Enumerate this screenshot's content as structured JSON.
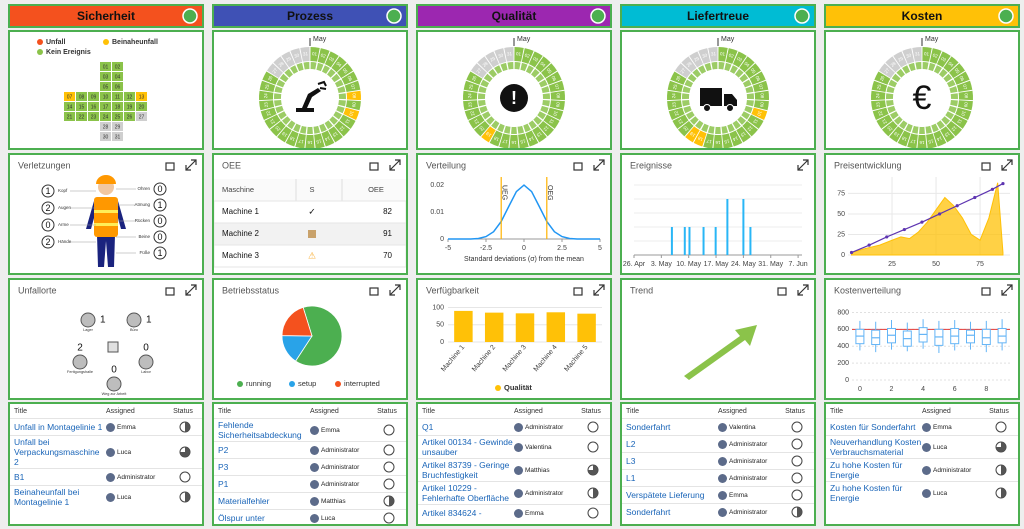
{
  "calendar": {
    "month": "May",
    "days": [
      "01",
      "02",
      "03",
      "04",
      "05",
      "06",
      "07",
      "08",
      "09",
      "10",
      "11",
      "12",
      "13",
      "14",
      "15",
      "16",
      "17",
      "18",
      "19",
      "20",
      "21",
      "22",
      "23",
      "24",
      "25",
      "26",
      "27",
      "28",
      "29",
      "30",
      "31"
    ]
  },
  "legend": [
    {
      "label": "Unfall",
      "color": "#f4511e"
    },
    {
      "label": "Beinaheunfall",
      "color": "#ffc107"
    },
    {
      "label": "Kein Ereignis",
      "color": "#8bc34a"
    }
  ],
  "columns": [
    {
      "title": "Sicherheit",
      "color": "#f4511e",
      "cross": [
        2,
        2,
        2,
        2,
        2,
        2,
        1,
        2,
        2,
        2,
        2,
        2,
        1,
        2,
        2,
        2,
        2,
        2,
        2,
        2,
        2,
        2,
        2,
        2,
        2,
        2,
        null,
        null,
        null,
        null,
        null
      ]
    },
    {
      "title": "Prozess",
      "color": "#3f51b5",
      "ring": [
        2,
        2,
        2,
        2,
        2,
        2,
        2,
        1,
        2,
        1,
        2,
        2,
        2,
        2,
        2,
        2,
        2,
        2,
        2,
        2,
        2,
        2,
        2,
        2,
        2,
        2,
        null,
        null,
        null,
        null,
        null
      ]
    },
    {
      "title": "Qualität",
      "color": "#9c27b0",
      "icon": "!",
      "ring": [
        2,
        2,
        2,
        2,
        2,
        2,
        2,
        2,
        2,
        2,
        2,
        2,
        2,
        2,
        2,
        2,
        2,
        2,
        1,
        2,
        2,
        2,
        2,
        2,
        2,
        2,
        null,
        null,
        null,
        null,
        null
      ]
    },
    {
      "title": "Liefertreue",
      "color": "#00bcd4",
      "ring": [
        2,
        2,
        2,
        2,
        2,
        2,
        2,
        2,
        2,
        1,
        2,
        2,
        2,
        2,
        2,
        2,
        2,
        1,
        1,
        2,
        2,
        2,
        2,
        2,
        2,
        2,
        null,
        null,
        null,
        null,
        null
      ]
    },
    {
      "title": "Kosten",
      "color": "#ffc107",
      "icon": "€",
      "ring": [
        2,
        2,
        2,
        2,
        2,
        2,
        2,
        2,
        2,
        2,
        2,
        2,
        2,
        2,
        2,
        2,
        2,
        2,
        2,
        2,
        2,
        2,
        2,
        2,
        2,
        2,
        null,
        null,
        null,
        null,
        null
      ]
    }
  ],
  "injuries": {
    "title": "Verletzungen",
    "left": [
      {
        "label": "Kopf",
        "value": 1
      },
      {
        "label": "Augen",
        "value": 2
      },
      {
        "label": "Arme",
        "value": 0
      },
      {
        "label": "Hände",
        "value": 2
      }
    ],
    "right": [
      {
        "label": "Ohren",
        "value": 0
      },
      {
        "label": "Atmung",
        "value": 1
      },
      {
        "label": "Rücken",
        "value": 0
      },
      {
        "label": "Beine",
        "value": 0
      },
      {
        "label": "Füße",
        "value": 1
      }
    ]
  },
  "oee": {
    "title": "OEE",
    "columns": [
      "Maschine",
      "S",
      "OEE"
    ],
    "rows": [
      [
        "Machine 1",
        "✓",
        82
      ],
      [
        "Machine 2",
        null,
        91
      ],
      [
        "Machine 3",
        "⚠",
        70
      ]
    ]
  },
  "distribution": {
    "type": "line",
    "title": "Verteilung",
    "x_label": "Standard deviations (σ) from the mean",
    "color": "#2196f3",
    "x": [
      -5,
      -4.5,
      -4,
      -3.5,
      -3,
      -2.5,
      -2,
      -1.5,
      -1,
      -0.5,
      0,
      0.5,
      1,
      1.5,
      2,
      2.5,
      3,
      3.5,
      4,
      4.5,
      5
    ],
    "values": [
      0,
      0,
      0,
      0,
      0.0002,
      0.0009,
      0.0027,
      0.0065,
      0.0121,
      0.0176,
      0.02,
      0.0176,
      0.0121,
      0.0065,
      0.0027,
      0.0009,
      0.0002,
      0,
      0,
      0,
      0
    ],
    "xlim": [
      -5,
      5
    ],
    "ylim": [
      0,
      0.023
    ],
    "xticks": [
      -5,
      -2.5,
      0,
      2.5,
      5
    ],
    "yticks": [
      0,
      0.01,
      0.02
    ],
    "limits": [
      {
        "label": "UEG",
        "value": -1.5,
        "color": "#ffb300"
      },
      {
        "label": "OEG",
        "value": 1.5,
        "color": "#ffb300"
      }
    ]
  },
  "events": {
    "type": "bar",
    "title": "Ereignisse",
    "color": "#29b6f6",
    "x": [
      9.7,
      13,
      14.2,
      17.8,
      20.9,
      23.9,
      28,
      29.8
    ],
    "values": [
      1,
      1,
      1,
      1,
      1,
      2,
      2,
      1
    ],
    "xlim": [
      0,
      43
    ],
    "ylim": [
      0,
      2.5
    ],
    "xticks": [
      {
        "value": 0,
        "label": "26. Apr"
      },
      {
        "value": 7,
        "label": "3. May"
      },
      {
        "value": 14,
        "label": "10. May"
      },
      {
        "value": 21,
        "label": "17. May"
      },
      {
        "value": 28,
        "label": "24. May"
      },
      {
        "value": 35,
        "label": "31. May"
      },
      {
        "value": 42,
        "label": "7. Jun"
      }
    ]
  },
  "price": {
    "type": "line",
    "title": "Preisentwicklung",
    "xlim": [
      0,
      92
    ],
    "ylim": [
      0,
      95
    ],
    "xticks": [
      25,
      50,
      75
    ],
    "yticks": [
      0,
      25,
      50,
      75
    ],
    "series": [
      {
        "color": "#ffc107",
        "x": [
          2,
          10,
          18,
          25,
          30,
          35,
          40,
          45,
          50,
          55,
          60,
          65,
          70,
          75,
          80,
          85,
          88
        ],
        "values": [
          3,
          8,
          12,
          18,
          22,
          20,
          28,
          40,
          55,
          70,
          60,
          45,
          25,
          18,
          45,
          88,
          3
        ]
      },
      {
        "color": "#5e35b1",
        "x": [
          2,
          12,
          22,
          32,
          42,
          52,
          62,
          72,
          82,
          88
        ],
        "values": [
          3,
          12,
          22,
          31,
          40,
          50,
          60,
          70,
          80,
          87
        ]
      }
    ]
  },
  "locations": {
    "title": "Unfallorte",
    "items": [
      {
        "label": "Lager",
        "value": 1
      },
      {
        "label": "Büro",
        "value": 1
      },
      {
        "label": "Fertigungshalle",
        "value": 2
      },
      {
        "label": "Labor",
        "value": 0
      },
      {
        "label": "Weg zur Arbeit",
        "value": 0
      }
    ]
  },
  "status": {
    "type": "pie",
    "title": "Betriebsstatus",
    "categories": [
      "running",
      "setup",
      "interrupted"
    ],
    "values": [
      64,
      16,
      20
    ],
    "colors": [
      "#4caf50",
      "#29a3e8",
      "#f4511e"
    ]
  },
  "availability": {
    "type": "bar",
    "title": "Verfügbarkeit",
    "categories": [
      "Machine 1",
      "Machine 2",
      "Machine 3",
      "Machine 4",
      "Machine 5"
    ],
    "ylim": [
      0,
      110
    ],
    "yticks": [
      0,
      50,
      100
    ],
    "series": [
      {
        "name": "Qualität",
        "color": "#ffc107",
        "values": [
          90,
          85,
          83,
          86,
          82
        ]
      }
    ]
  },
  "trend": {
    "title": "Trend"
  },
  "costs": {
    "type": "box",
    "title": "Kostenverteilung",
    "color": "#64b5f6",
    "target": 600,
    "target_color": "#e53935",
    "xlim": [
      -0.5,
      9.5
    ],
    "ylim": [
      0,
      900
    ],
    "xticks": [
      0,
      2,
      4,
      6,
      8
    ],
    "yticks": [
      0,
      200,
      400,
      600,
      800
    ],
    "boxes": [
      [
        350,
        430,
        520,
        600,
        700
      ],
      [
        330,
        420,
        500,
        590,
        690
      ],
      [
        360,
        440,
        530,
        610,
        710
      ],
      [
        340,
        400,
        490,
        580,
        680
      ],
      [
        370,
        450,
        540,
        620,
        720
      ],
      [
        320,
        410,
        510,
        600,
        700
      ],
      [
        350,
        430,
        520,
        610,
        710
      ],
      [
        360,
        440,
        530,
        590,
        690
      ],
      [
        330,
        420,
        500,
        600,
        700
      ],
      [
        350,
        440,
        520,
        610,
        720
      ]
    ]
  },
  "lists": {
    "headers": [
      "Title",
      "Assigned",
      "Status"
    ],
    "columns": [
      [
        {
          "title": "Unfall in Montagelinie 1",
          "assigned": "Emma",
          "status": 0.5
        },
        {
          "title": "Unfall bei Verpackungsmaschine 2",
          "assigned": "Luca",
          "status": 0.75
        },
        {
          "title": "B1",
          "assigned": "Administrator",
          "status": 0
        },
        {
          "title": "Beinaheunfall bei Montagelinie 1",
          "assigned": "Luca",
          "status": 0.5
        }
      ],
      [
        {
          "title": "Fehlende Sicherheitsabdeckung",
          "assigned": "Emma",
          "status": 0
        },
        {
          "title": "P2",
          "assigned": "Administrator",
          "status": 0
        },
        {
          "title": "P3",
          "assigned": "Administrator",
          "status": 0
        },
        {
          "title": "P1",
          "assigned": "Administrator",
          "status": 0
        },
        {
          "title": "Materialfehler",
          "assigned": "Matthias",
          "status": 0.5
        },
        {
          "title": "Ölspur unter",
          "assigned": "Luca",
          "status": 0
        }
      ],
      [
        {
          "title": "Q1",
          "assigned": "Administrator",
          "status": 0
        },
        {
          "title": "Artikel 00134 - Gewinde unsauber",
          "assigned": "Valentina",
          "status": 0
        },
        {
          "title": "Artikel 83739 - Geringe Bruchfestigkeit",
          "assigned": "Matthias",
          "status": 0.75
        },
        {
          "title": "Artikel 10229 - Fehlerhafte Oberfläche",
          "assigned": "Administrator",
          "status": 0.5
        },
        {
          "title": "Artikel 834624 -",
          "assigned": "Emma",
          "status": 0
        }
      ],
      [
        {
          "title": "Sonderfahrt",
          "assigned": "Valentina",
          "status": 0
        },
        {
          "title": "L2",
          "assigned": "Administrator",
          "status": 0
        },
        {
          "title": "L3",
          "assigned": "Administrator",
          "status": 0
        },
        {
          "title": "L1",
          "assigned": "Administrator",
          "status": 0
        },
        {
          "title": "Verspätete Lieferung",
          "assigned": "Emma",
          "status": 0
        },
        {
          "title": "Sonderfahrt",
          "assigned": "Administrator",
          "status": 0.5
        }
      ],
      [
        {
          "title": "Kosten für Sonderfahrt",
          "assigned": "Emma",
          "status": 0
        },
        {
          "title": "Neuverhandlung Kosten Verbrauchsmaterial",
          "assigned": "Luca",
          "status": 0.75
        },
        {
          "title": "Zu hohe Kosten für Energie",
          "assigned": "Administrator",
          "status": 0.5
        },
        {
          "title": "Zu hohe Kosten für Energie",
          "assigned": "Luca",
          "status": 0.5
        }
      ]
    ]
  }
}
